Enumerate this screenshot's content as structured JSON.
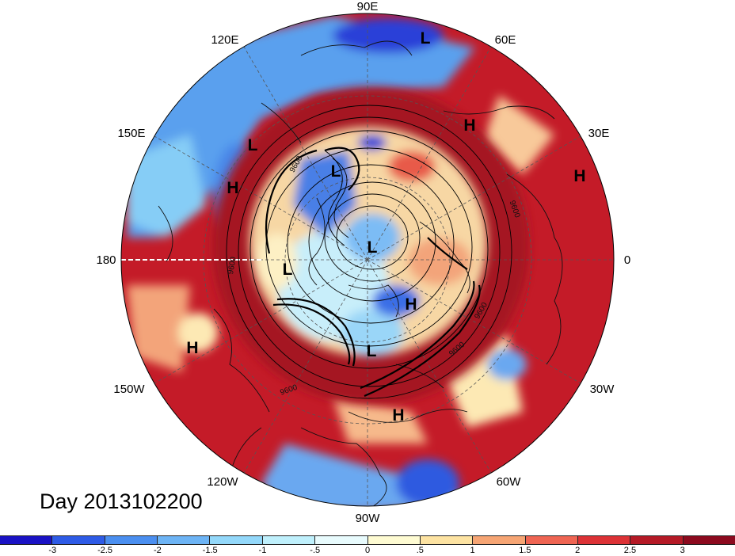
{
  "map": {
    "projection": "north-polar-stereographic",
    "longitude_labels": [
      "90E",
      "60E",
      "30E",
      "0",
      "30W",
      "60W",
      "90W",
      "120W",
      "150W",
      "180",
      "150E",
      "120E"
    ],
    "pressure_systems": [
      {
        "type": "L",
        "region": "central-siberia"
      },
      {
        "type": "H",
        "region": "ural"
      },
      {
        "type": "H",
        "region": "eastern-europe"
      },
      {
        "type": "L",
        "region": "east-siberia"
      },
      {
        "type": "H",
        "region": "okhotsk"
      },
      {
        "type": "L",
        "region": "east-siberian-sea"
      },
      {
        "type": "L",
        "region": "north-pole"
      },
      {
        "type": "L",
        "region": "alaska"
      },
      {
        "type": "H",
        "region": "canadian-arctic"
      },
      {
        "type": "H",
        "region": "north-pacific"
      },
      {
        "type": "L",
        "region": "hudson-bay"
      },
      {
        "type": "H",
        "region": "north-atlantic-west"
      }
    ],
    "contour_labels": [
      "9600",
      "9600",
      "9600",
      "9600",
      "9600",
      "9600"
    ]
  },
  "title": "Day 2013102200",
  "colorbar": {
    "ticks": [
      "-3",
      "-2.5",
      "-2",
      "-1.5",
      "-1",
      "-.5",
      "0",
      ".5",
      "1",
      "1.5",
      "2",
      "2.5",
      "3"
    ],
    "colors": [
      "#1a12c4",
      "#2e5be6",
      "#4b8ff0",
      "#6db4f5",
      "#93d8fa",
      "#bff0fc",
      "#e8fbfd",
      "#fefbd2",
      "#fde3a2",
      "#f6a574",
      "#ef6553",
      "#dc3236",
      "#b51a26",
      "#8c0a1e"
    ]
  }
}
